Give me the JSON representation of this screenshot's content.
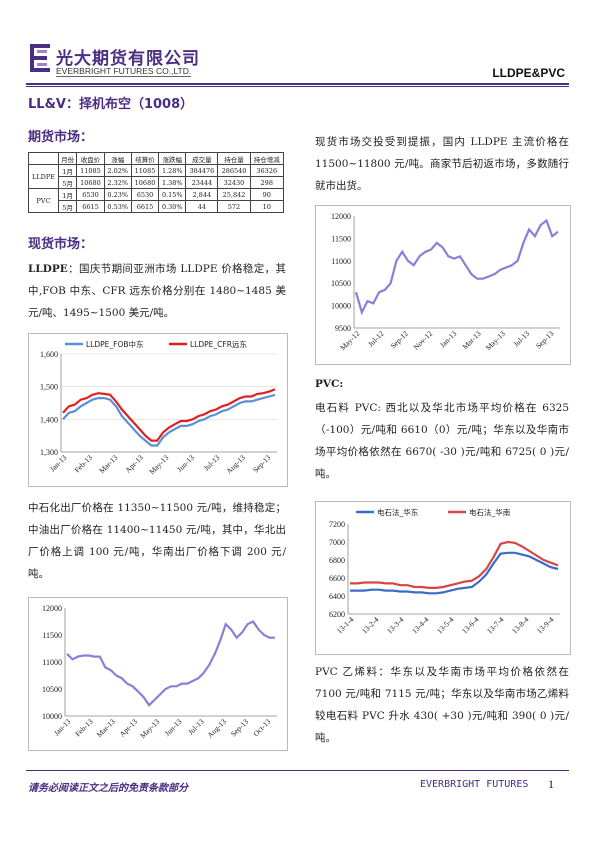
{
  "header": {
    "logo_cn": "光大期货有限公司",
    "logo_en": "EVERBRIGHT FUTURES CO.,LTD.",
    "doc_tag": "LLDPE&PVC",
    "brand_color": "#4b2e83"
  },
  "title": "LL&V：择机布空（1008）",
  "futures": {
    "heading": "期货市场：",
    "table": {
      "headers": [
        "",
        "月份",
        "收盘价",
        "涨幅",
        "结算价",
        "涨跌幅",
        "成交量",
        "持仓量",
        "持仓增减"
      ],
      "rows": [
        [
          "LLDPE",
          "1月",
          "11085",
          "2.02%",
          "11085",
          "1.28%",
          "384476",
          "286540",
          "36326"
        ],
        [
          "",
          "5月",
          "10680",
          "2.32%",
          "10680",
          "1.38%",
          "23444",
          "32430",
          "298"
        ],
        [
          "PVC",
          "1月",
          "6530",
          "0.23%",
          "6530",
          "0.15%",
          "2,844",
          "25,842",
          "90"
        ],
        [
          "",
          "5月",
          "6615",
          "0.53%",
          "6615",
          "0.30%",
          "44",
          "572",
          "10"
        ]
      ]
    }
  },
  "spot": {
    "heading": "现货市场：",
    "lldpe_label": "LLDPE",
    "lldpe_text1": "：国庆节期间亚洲市场 LLDPE 价格稳定，其中,FOB 中东、CFR 远东价格分别在 1480~1485 美元/吨、1495~1500 美元/吨。",
    "lldpe_text2": "中石化出厂价格在 11350~11500 元/吨，维持稳定；中油出厂价格在 11400~11450 元/吨，其中，华北出厂价格上调 100 元/吨，华南出厂价格下调 200 元/吨。",
    "right_text1": "现货市场交投受到提振，国内 LLDPE 主流价格在 11500~11800 元/吨。商家节后初返市场，多数随行就市出货。",
    "pvc_label": "PVC:",
    "pvc_text1": "电石料 PVC: 西北以及华北市场平均价格在 6325（-100）元/吨和 6610（0）元/吨；华东以及华南市场平均价格依然在 6670( -30 )元/吨和 6725( 0 )元/吨。",
    "pvc_text2": "PVC 乙烯料：华东以及华南市场平均价格依然在 7100 元/吨和 7115 元/吨；华东以及华南市场乙烯料较电石料 PVC 升水 430( +30 )元/吨和 390( 0 )元/吨。"
  },
  "footer": {
    "disclaimer": "请务必阅读正文之后的免责条款部分",
    "brand": "EVERBRIGHT FUTURES",
    "page": "1"
  },
  "chart_data": [
    {
      "type": "line",
      "legend_position": "top",
      "ylim": [
        1300,
        1600
      ],
      "yticks": [
        "1,300",
        "1,400",
        "1,500",
        "1,600"
      ],
      "x_labels": [
        "Jan-13",
        "Feb-13",
        "Mar-13",
        "Apr-13",
        "May-13",
        "Jun-13",
        "Jul-13",
        "Aug-13",
        "Sep-13"
      ],
      "series": [
        {
          "name": "LLDPE_FOB中东",
          "color": "#5b8fd6",
          "values": [
            1400,
            1420,
            1425,
            1440,
            1450,
            1460,
            1465,
            1465,
            1460,
            1440,
            1410,
            1390,
            1370,
            1350,
            1335,
            1320,
            1320,
            1345,
            1360,
            1370,
            1380,
            1380,
            1385,
            1395,
            1400,
            1410,
            1415,
            1425,
            1430,
            1440,
            1450,
            1455,
            1455,
            1460,
            1465,
            1470,
            1475
          ]
        },
        {
          "name": "LLDPE_CFR远东",
          "color": "#e02020",
          "values": [
            1420,
            1440,
            1445,
            1460,
            1465,
            1475,
            1480,
            1478,
            1475,
            1455,
            1430,
            1410,
            1390,
            1370,
            1350,
            1335,
            1335,
            1360,
            1375,
            1385,
            1395,
            1395,
            1400,
            1410,
            1415,
            1425,
            1430,
            1440,
            1445,
            1455,
            1465,
            1470,
            1470,
            1478,
            1480,
            1485,
            1492
          ]
        }
      ]
    },
    {
      "type": "line",
      "ylim": [
        10000,
        12000
      ],
      "yticks": [
        "10000",
        "10500",
        "11000",
        "11500",
        "12000"
      ],
      "x_labels": [
        "Jan-13",
        "Feb-13",
        "Mar-13",
        "Apr-13",
        "May-13",
        "Jun-13",
        "Jul-13",
        "Aug-13",
        "Sep-13",
        "Oct-13"
      ],
      "series": [
        {
          "name": "",
          "color": "#8e7cd8",
          "values": [
            11150,
            11050,
            11100,
            11120,
            11120,
            11100,
            11100,
            10900,
            10850,
            10750,
            10700,
            10600,
            10550,
            10450,
            10350,
            10200,
            10300,
            10400,
            10500,
            10550,
            10550,
            10600,
            10600,
            10650,
            10700,
            10800,
            10950,
            11150,
            11400,
            11700,
            11600,
            11450,
            11550,
            11700,
            11750,
            11600,
            11500,
            11450,
            11450
          ]
        }
      ]
    },
    {
      "type": "line",
      "ylim": [
        9500,
        12000
      ],
      "yticks": [
        "9500",
        "10000",
        "10500",
        "11000",
        "11500",
        "12000"
      ],
      "x_labels": [
        "May-12",
        "Jul-12",
        "Sep-12",
        "Nov-12",
        "Jan-13",
        "Mar-13",
        "May-13",
        "Jul-13",
        "Sep-13"
      ],
      "series": [
        {
          "name": "",
          "color": "#8e7cd8",
          "values": [
            10300,
            9850,
            10100,
            10050,
            10300,
            10350,
            10500,
            11000,
            11200,
            11000,
            10900,
            11100,
            11200,
            11250,
            11400,
            11300,
            11100,
            11050,
            11100,
            10900,
            10700,
            10600,
            10600,
            10650,
            10700,
            10800,
            10850,
            10900,
            11000,
            11400,
            11700,
            11550,
            11800,
            11900,
            11550,
            11650
          ]
        }
      ]
    },
    {
      "type": "line",
      "legend_position": "top",
      "ylim": [
        6200,
        7200
      ],
      "yticks": [
        "6200",
        "6400",
        "6600",
        "6800",
        "7000",
        "7200"
      ],
      "x_labels": [
        "13-1-4",
        "13-2-4",
        "13-3-4",
        "13-4-4",
        "13-5-4",
        "13-6-4",
        "13-7-4",
        "13-8-4",
        "13-9-4"
      ],
      "series": [
        {
          "name": "电石法_华东",
          "color": "#3a6bc9",
          "values": [
            6460,
            6460,
            6460,
            6470,
            6470,
            6460,
            6460,
            6450,
            6450,
            6440,
            6440,
            6430,
            6430,
            6440,
            6460,
            6480,
            6490,
            6500,
            6560,
            6640,
            6760,
            6870,
            6880,
            6880,
            6860,
            6840,
            6800,
            6760,
            6720,
            6700
          ]
        },
        {
          "name": "电石法_华南",
          "color": "#d64545",
          "values": [
            6540,
            6540,
            6550,
            6550,
            6550,
            6540,
            6540,
            6520,
            6520,
            6500,
            6500,
            6490,
            6490,
            6500,
            6520,
            6540,
            6560,
            6570,
            6620,
            6700,
            6830,
            6980,
            7000,
            6990,
            6950,
            6900,
            6850,
            6800,
            6770,
            6740
          ]
        }
      ]
    }
  ]
}
